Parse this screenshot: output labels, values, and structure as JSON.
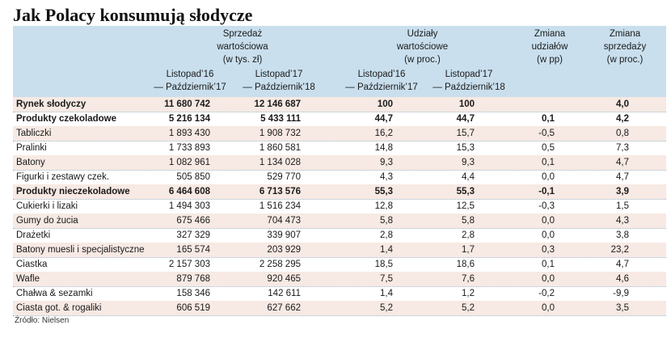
{
  "title": "Jak Polacy konsumują słodycze",
  "headers": {
    "sales": [
      "Sprzedaż",
      "wartościowa",
      "(w tys. zł)"
    ],
    "shares": [
      "Udziały",
      "wartościowe",
      "(w proc.)"
    ],
    "share_change": [
      "Zmiana",
      "udziałów",
      "(w pp)"
    ],
    "sales_change": [
      "Zmiana",
      "sprzedaży",
      "(w proc.)"
    ],
    "period1": [
      "Listopad’16",
      "— Październik’17"
    ],
    "period2": [
      "Listopad’17",
      "— Październik’18"
    ]
  },
  "rows": [
    {
      "label": "Rynek słodyczy",
      "s1": "11 680 742",
      "s2": "12 146 687",
      "u1": "100",
      "u2": "100",
      "zu": "",
      "zs": "4,0",
      "bold": true
    },
    {
      "label": "Produkty czekoladowe",
      "s1": "5 216 134",
      "s2": "5 433 111",
      "u1": "44,7",
      "u2": "44,7",
      "zu": "0,1",
      "zs": "4,2",
      "bold": true
    },
    {
      "label": "Tabliczki",
      "s1": "1 893 430",
      "s2": "1 908 732",
      "u1": "16,2",
      "u2": "15,7",
      "zu": "-0,5",
      "zs": "0,8",
      "bold": false
    },
    {
      "label": "Pralinki",
      "s1": "1 733 893",
      "s2": "1 860 581",
      "u1": "14,8",
      "u2": "15,3",
      "zu": "0,5",
      "zs": "7,3",
      "bold": false
    },
    {
      "label": "Batony",
      "s1": "1 082 961",
      "s2": "1 134 028",
      "u1": "9,3",
      "u2": "9,3",
      "zu": "0,1",
      "zs": "4,7",
      "bold": false
    },
    {
      "label": "Figurki i zestawy czek.",
      "s1": "505 850",
      "s2": "529 770",
      "u1": "4,3",
      "u2": "4,4",
      "zu": "0,0",
      "zs": "4,7",
      "bold": false
    },
    {
      "label": "Produkty nieczekoladowe",
      "s1": "6 464 608",
      "s2": "6 713 576",
      "u1": "55,3",
      "u2": "55,3",
      "zu": "-0,1",
      "zs": "3,9",
      "bold": true
    },
    {
      "label": "Cukierki i lizaki",
      "s1": "1 494 303",
      "s2": "1 516 234",
      "u1": "12,8",
      "u2": "12,5",
      "zu": "-0,3",
      "zs": "1,5",
      "bold": false
    },
    {
      "label": "Gumy do żucia",
      "s1": "675 466",
      "s2": "704 473",
      "u1": "5,8",
      "u2": "5,8",
      "zu": "0,0",
      "zs": "4,3",
      "bold": false
    },
    {
      "label": "Drażetki",
      "s1": "327 329",
      "s2": "339 907",
      "u1": "2,8",
      "u2": "2,8",
      "zu": "0,0",
      "zs": "3,8",
      "bold": false
    },
    {
      "label": "Batony muesli i specjalistyczne",
      "s1": "165 574",
      "s2": "203 929",
      "u1": "1,4",
      "u2": "1,7",
      "zu": "0,3",
      "zs": "23,2",
      "bold": false
    },
    {
      "label": "Ciastka",
      "s1": "2 157 303",
      "s2": "2 258 295",
      "u1": "18,5",
      "u2": "18,6",
      "zu": "0,1",
      "zs": "4,7",
      "bold": false
    },
    {
      "label": "Wafle",
      "s1": "879 768",
      "s2": "920 465",
      "u1": "7,5",
      "u2": "7,6",
      "zu": "0,0",
      "zs": "4,6",
      "bold": false
    },
    {
      "label": "Chałwa & sezamki",
      "s1": "158 346",
      "s2": "142 611",
      "u1": "1,4",
      "u2": "1,2",
      "zu": "-0,2",
      "zs": "-9,9",
      "bold": false
    },
    {
      "label": "Ciasta got. & rogaliki",
      "s1": "606 519",
      "s2": "627 662",
      "u1": "5,2",
      "u2": "5,2",
      "zu": "0,0",
      "zs": "3,5",
      "bold": false
    }
  ],
  "source": "Źródło: Nielsen"
}
